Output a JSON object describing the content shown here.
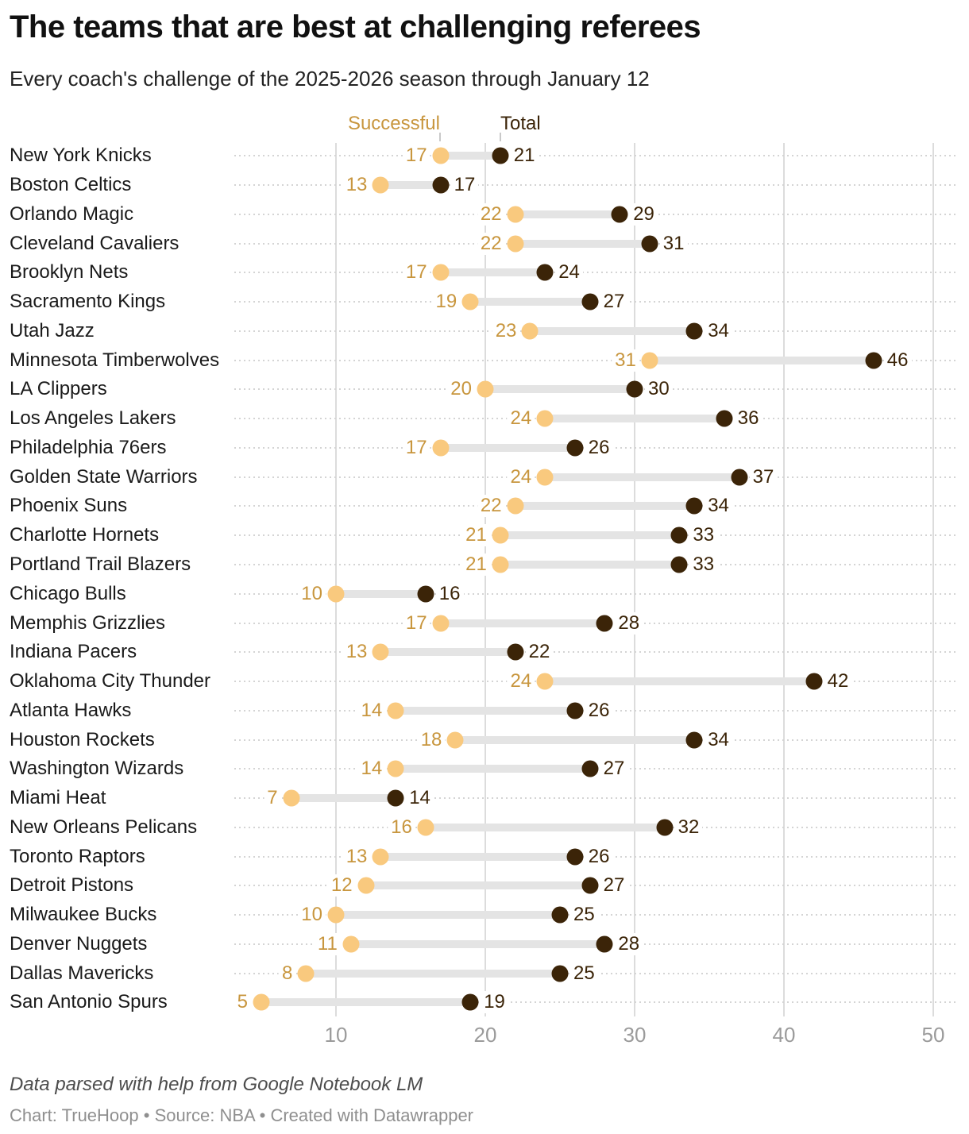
{
  "chart_data": {
    "type": "dumbbell",
    "title": "The teams that are best at challenging referees",
    "subtitle": "Every coach's challenge of the 2025-2026 season through January 12",
    "legend": {
      "successful": "Successful",
      "total": "Total"
    },
    "series": [
      "Successful",
      "Total"
    ],
    "teams": [
      {
        "name": "New York Knicks",
        "successful": 17,
        "total": 21
      },
      {
        "name": "Boston Celtics",
        "successful": 13,
        "total": 17
      },
      {
        "name": "Orlando Magic",
        "successful": 22,
        "total": 29
      },
      {
        "name": "Cleveland Cavaliers",
        "successful": 22,
        "total": 31
      },
      {
        "name": "Brooklyn Nets",
        "successful": 17,
        "total": 24
      },
      {
        "name": "Sacramento Kings",
        "successful": 19,
        "total": 27
      },
      {
        "name": "Utah Jazz",
        "successful": 23,
        "total": 34
      },
      {
        "name": "Minnesota Timberwolves",
        "successful": 31,
        "total": 46
      },
      {
        "name": "LA Clippers",
        "successful": 20,
        "total": 30
      },
      {
        "name": "Los Angeles Lakers",
        "successful": 24,
        "total": 36
      },
      {
        "name": "Philadelphia 76ers",
        "successful": 17,
        "total": 26
      },
      {
        "name": "Golden State Warriors",
        "successful": 24,
        "total": 37
      },
      {
        "name": "Phoenix Suns",
        "successful": 22,
        "total": 34
      },
      {
        "name": "Charlotte Hornets",
        "successful": 21,
        "total": 33
      },
      {
        "name": "Portland Trail Blazers",
        "successful": 21,
        "total": 33
      },
      {
        "name": "Chicago Bulls",
        "successful": 10,
        "total": 16
      },
      {
        "name": "Memphis Grizzlies",
        "successful": 17,
        "total": 28
      },
      {
        "name": "Indiana Pacers",
        "successful": 13,
        "total": 22
      },
      {
        "name": "Oklahoma City Thunder",
        "successful": 24,
        "total": 42
      },
      {
        "name": "Atlanta Hawks",
        "successful": 14,
        "total": 26
      },
      {
        "name": "Houston Rockets",
        "successful": 18,
        "total": 34
      },
      {
        "name": "Washington Wizards",
        "successful": 14,
        "total": 27
      },
      {
        "name": "Miami Heat",
        "successful": 7,
        "total": 14
      },
      {
        "name": "New Orleans Pelicans",
        "successful": 16,
        "total": 32
      },
      {
        "name": "Toronto Raptors",
        "successful": 13,
        "total": 26
      },
      {
        "name": "Detroit Pistons",
        "successful": 12,
        "total": 27
      },
      {
        "name": "Milwaukee Bucks",
        "successful": 10,
        "total": 25
      },
      {
        "name": "Denver Nuggets",
        "successful": 11,
        "total": 28
      },
      {
        "name": "Dallas Mavericks",
        "successful": 8,
        "total": 25
      },
      {
        "name": "San Antonio Spurs",
        "successful": 5,
        "total": 19
      }
    ],
    "x_axis": {
      "ticks": [
        10,
        20,
        30,
        40,
        50
      ],
      "grid": true
    },
    "footnote": "Data parsed with help from Google Notebook LM",
    "credit": "Chart: TrueHoop • Source: NBA • Created with Datawrapper",
    "colors": {
      "successful_dot": "#F9C97E",
      "successful_text": "#C8963E",
      "total_dot": "#3B2408",
      "total_text": "#3B2408",
      "connector": "#E4E4E4",
      "gridline": "#DCDCDC",
      "axis_text": "#9B9B9B"
    }
  }
}
